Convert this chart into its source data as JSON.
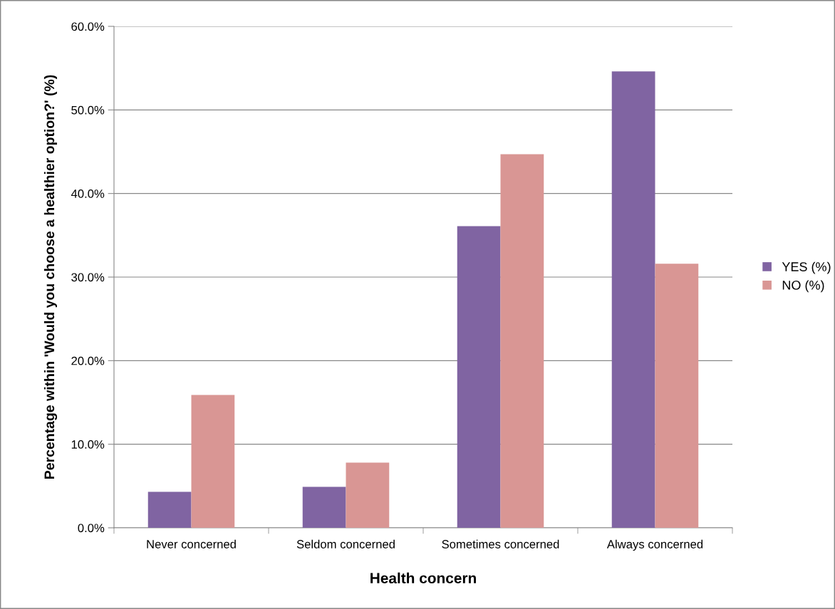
{
  "chart_data": {
    "type": "bar",
    "xlabel": "Health concern",
    "ylabel": "Percentage within 'Would you choose a healthier option?' (%)",
    "categories": [
      "Never concerned",
      "Seldom concerned",
      "Sometimes concerned",
      "Always concerned"
    ],
    "series": [
      {
        "name": "YES (%)",
        "color": "#8064a2",
        "values": [
          4.3,
          4.9,
          36.1,
          54.6
        ]
      },
      {
        "name": "NO (%)",
        "color": "#d99694",
        "values": [
          15.9,
          7.8,
          44.7,
          31.6
        ]
      }
    ],
    "ylim": [
      0,
      60
    ],
    "yticks": [
      {
        "value": 0,
        "label": "0.0%"
      },
      {
        "value": 10,
        "label": "10.0%"
      },
      {
        "value": 20,
        "label": "20.0%"
      },
      {
        "value": 30,
        "label": "30.0%"
      },
      {
        "value": 40,
        "label": "40.0%"
      },
      {
        "value": 50,
        "label": "50.0%"
      },
      {
        "value": 60,
        "label": "60.0%"
      }
    ],
    "grid": "y",
    "legend": "right"
  }
}
